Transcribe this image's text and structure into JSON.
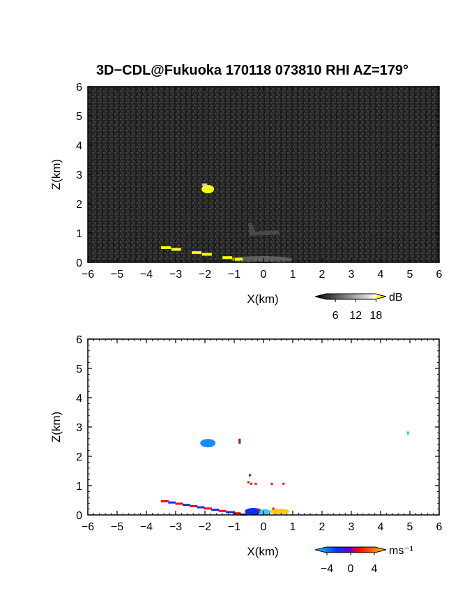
{
  "chart_data": [
    {
      "type": "heatmap",
      "title": "3D−CDL@Fukuoka 170118 073810 RHI AZ=179°",
      "variable": "reflectivity",
      "xlabel": "X(km)",
      "ylabel": "Z(km)",
      "xlim": [
        -6,
        6
      ],
      "ylim": [
        0,
        6
      ],
      "x_ticks": [
        "−6",
        "−5",
        "−4",
        "−3",
        "−2",
        "−1",
        "0",
        "1",
        "2",
        "3",
        "4",
        "5",
        "6"
      ],
      "y_ticks": [
        "0",
        "1",
        "2",
        "3",
        "4",
        "5",
        "6"
      ],
      "background": "noise, dark gray",
      "colorbar": {
        "unit": "dB",
        "ticks": [
          "6",
          "12",
          "18"
        ],
        "range": [
          0,
          21
        ],
        "colors": [
          "#000000",
          "#ffffff",
          "#ffff00"
        ]
      },
      "features": [
        {
          "label": "echo blob",
          "x": -1.9,
          "z": 2.5,
          "value_db": 21
        },
        {
          "label": "surface clutter line",
          "x_from": -3.5,
          "x_to": -0.7,
          "z_from": 0.5,
          "z_to": 0.05,
          "value_db": 21
        },
        {
          "label": "near-ground bright region",
          "x_from": -1.2,
          "x_to": 1.2,
          "z_from": 0.0,
          "z_to": 0.2,
          "value_db": 12
        },
        {
          "label": "faint plume",
          "x": -0.4,
          "z": 1.2,
          "value_db": 9
        }
      ]
    },
    {
      "type": "heatmap",
      "variable": "doppler velocity",
      "xlabel": "X(km)",
      "ylabel": "Z(km)",
      "xlim": [
        -6,
        6
      ],
      "ylim": [
        0,
        6
      ],
      "x_ticks": [
        "−6",
        "−5",
        "−4",
        "−3",
        "−2",
        "−1",
        "0",
        "1",
        "2",
        "3",
        "4",
        "5",
        "6"
      ],
      "y_ticks": [
        "0",
        "1",
        "2",
        "3",
        "4",
        "5",
        "6"
      ],
      "colorbar": {
        "unit": "ms⁻¹",
        "ticks": [
          "−4",
          "0",
          "4"
        ],
        "range": [
          -6,
          6
        ],
        "colors": [
          "#33ccff",
          "#0033ff",
          "#ff0000",
          "#ffcc00"
        ]
      },
      "features": [
        {
          "label": "blob",
          "x": -1.9,
          "z": 2.45,
          "velocity": -3.5
        },
        {
          "label": "small echo",
          "x": -0.85,
          "z": 2.55,
          "velocity": 0
        },
        {
          "label": "scattered echoes",
          "x_from": -0.6,
          "x_to": 0.6,
          "z": 1.1,
          "velocity": 1
        },
        {
          "label": "low line",
          "x_from": -3.5,
          "x_to": -0.8,
          "z_from": 0.5,
          "z_to": 0.05,
          "velocity": 1
        },
        {
          "label": "near-surface cluster",
          "x_from": -0.6,
          "x_to": 1.0,
          "z_from": 0.0,
          "z_to": 0.25,
          "velocity": -2
        },
        {
          "label": "isolated point",
          "x": 4.9,
          "z": 2.8,
          "velocity": -5
        }
      ]
    }
  ]
}
